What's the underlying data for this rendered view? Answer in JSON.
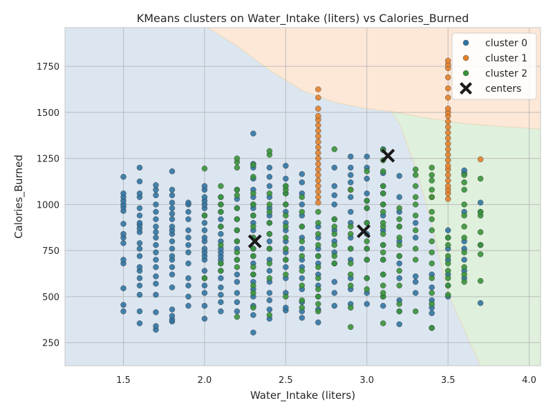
{
  "chart_data": {
    "type": "scatter",
    "title": "KMeans clusters on Water_Intake (liters) vs Calories_Burned",
    "xlabel": "Water_Intake (liters)",
    "ylabel": "Calories_Burned",
    "xlim": [
      1.14,
      4.07
    ],
    "ylim": [
      125,
      1960
    ],
    "xticks": [
      1.5,
      2.0,
      2.5,
      3.0,
      3.5,
      4.0
    ],
    "xtick_labels": [
      "1.5",
      "2.0",
      "2.5",
      "3.0",
      "3.5",
      "4.0"
    ],
    "yticks": [
      250,
      500,
      750,
      1000,
      1250,
      1500,
      1750
    ],
    "ytick_labels": [
      "250",
      "500",
      "750",
      "1000",
      "1250",
      "1500",
      "1750"
    ],
    "grid": true,
    "legend_position": "top-right",
    "colors": {
      "cluster0": "#3274a1",
      "cluster1": "#e1812c",
      "cluster2": "#3a923a",
      "region0": "#dce6f1",
      "region1": "#fde8d8",
      "region2": "#dff0dc",
      "centers": "#1a1a1a"
    },
    "decision_regions": {
      "boundary_0_1": [
        [
          2.02,
          1960
        ],
        [
          2.2,
          1860
        ],
        [
          2.4,
          1730
        ],
        [
          2.6,
          1620
        ],
        [
          2.8,
          1555
        ],
        [
          3.0,
          1520
        ],
        [
          3.15,
          1505
        ]
      ],
      "boundary_1_2": [
        [
          3.15,
          1505
        ],
        [
          3.4,
          1465
        ],
        [
          3.6,
          1440
        ],
        [
          3.8,
          1425
        ],
        [
          4.07,
          1410
        ]
      ],
      "boundary_0_2": [
        [
          3.15,
          1505
        ],
        [
          3.2,
          1440
        ],
        [
          3.3,
          1200
        ],
        [
          3.4,
          900
        ],
        [
          3.45,
          700
        ],
        [
          3.5,
          520
        ],
        [
          3.6,
          320
        ],
        [
          3.7,
          125
        ]
      ]
    },
    "series": [
      {
        "name": "cluster 0",
        "columns": [
          {
            "x": 1.5,
            "y": [
              420,
              455,
              545,
              680,
              700,
              790,
              820,
              840,
              895,
              965,
              985,
              1000,
              1020,
              1040,
              1060,
              1150
            ]
          },
          {
            "x": 1.6,
            "y": [
              355,
              420,
              510,
              560,
              600,
              640,
              660,
              720,
              760,
              790,
              850,
              870,
              890,
              900,
              940,
              980,
              1040,
              1060,
              1125,
              1200
            ]
          },
          {
            "x": 1.7,
            "y": [
              320,
              340,
              415,
              510,
              570,
              610,
              660,
              700,
              740,
              780,
              820,
              850,
              880,
              920,
              960,
              1000,
              1050,
              1080,
              1105
            ]
          },
          {
            "x": 1.8,
            "y": [
              365,
              375,
              395,
              430,
              550,
              620,
              660,
              700,
              720,
              760,
              800,
              840,
              860,
              880,
              920,
              950,
              980,
              1010,
              1050,
              1080,
              1180
            ]
          },
          {
            "x": 1.9,
            "y": [
              450,
              500,
              560,
              600,
              680,
              740,
              780,
              820,
              860,
              920,
              960,
              1000,
              1010
            ]
          },
          {
            "x": 2.0,
            "y": [
              380,
              450,
              520,
              560,
              600,
              640,
              700,
              720,
              740,
              760,
              800,
              820,
              860,
              900,
              940,
              980,
              1000,
              1020,
              1040,
              1080,
              1100
            ]
          },
          {
            "x": 2.1,
            "y": [
              420,
              470,
              510,
              550,
              600,
              640,
              680,
              700,
              720,
              740,
              760,
              800,
              840,
              880,
              920,
              960,
              1000,
              1040
            ]
          },
          {
            "x": 2.2,
            "y": [
              420,
              470,
              520,
              580,
              620,
              700,
              760,
              800,
              860,
              920,
              980,
              1030,
              1080
            ]
          },
          {
            "x": 2.3,
            "y": [
              305,
              400,
              450,
              500,
              540,
              580,
              620,
              680,
              720,
              760,
              820,
              860,
              900,
              940,
              980,
              1000,
              1040,
              1080,
              1140,
              1200,
              1220,
              1385
            ]
          },
          {
            "x": 2.4,
            "y": [
              380,
              430,
              480,
              520,
              580,
              640,
              700,
              760,
              800,
              840,
              900,
              940,
              980,
              1040,
              1100,
              1150,
              1200
            ]
          },
          {
            "x": 2.5,
            "y": [
              425,
              440,
              520,
              600,
              660,
              700,
              740,
              800,
              860,
              900,
              960,
              1000,
              1060,
              1100,
              1140,
              1210
            ]
          },
          {
            "x": 2.6,
            "y": [
              385,
              420,
              470,
              540,
              600,
              660,
              700,
              760,
              820,
              880,
              940,
              1000,
              1060,
              1120,
              1165
            ]
          },
          {
            "x": 2.7,
            "y": [
              360,
              430,
              500,
              560,
              620,
              680,
              720,
              760,
              820,
              880
            ]
          },
          {
            "x": 2.8,
            "y": [
              450,
              520,
              580,
              680,
              740,
              800,
              860,
              920,
              1000,
              1050,
              1100,
              1200
            ]
          },
          {
            "x": 2.9,
            "y": [
              460,
              540,
              600,
              700,
              760,
              820,
              900,
              960,
              1040,
              1080,
              1120,
              1160,
              1200,
              1260
            ]
          },
          {
            "x": 3.0,
            "y": [
              460,
              520,
              600,
              700,
              760,
              840,
              900,
              980,
              1020,
              1060,
              1140,
              1200,
              1260
            ]
          },
          {
            "x": 3.1,
            "y": [
              450,
              500,
              620,
              700,
              780,
              860,
              940,
              1000,
              1060,
              1100,
              1170,
              1300
            ]
          },
          {
            "x": 3.2,
            "y": [
              350,
              420,
              480,
              600,
              680,
              720,
              800,
              880,
              960,
              1040,
              1155
            ]
          },
          {
            "x": 3.3,
            "y": [
              520,
              580,
              610,
              820,
              900
            ]
          },
          {
            "x": 3.4,
            "y": [
              330,
              410,
              440,
              480,
              550,
              620
            ]
          },
          {
            "x": 3.5,
            "y": [
              500,
              560,
              620,
              700,
              760,
              820,
              860
            ]
          },
          {
            "x": 3.6,
            "y": [
              600,
              640,
              700,
              760,
              800,
              960,
              1170,
              1185
            ]
          },
          {
            "x": 3.7,
            "y": [
              465,
              780,
              960,
              1010
            ]
          }
        ]
      },
      {
        "name": "cluster 1",
        "columns": [
          {
            "x": 2.7,
            "y": [
              1010,
              1040,
              1070,
              1100,
              1130,
              1160,
              1190,
              1220,
              1250,
              1280,
              1310,
              1340,
              1370,
              1400,
              1430,
              1460,
              1480,
              1520,
              1580,
              1625
            ]
          },
          {
            "x": 2.9,
            "y": [
              1080
            ]
          },
          {
            "x": 3.4,
            "y": [
              1040
            ]
          },
          {
            "x": 3.5,
            "y": [
              1030,
              1060,
              1080,
              1100,
              1130,
              1160,
              1190,
              1210,
              1240,
              1270,
              1300,
              1330,
              1360,
              1390,
              1420,
              1450,
              1480,
              1500,
              1520,
              1580,
              1630,
              1690,
              1740,
              1760,
              1780
            ]
          },
          {
            "x": 3.7,
            "y": [
              1245
            ]
          }
        ]
      },
      {
        "name": "cluster 2",
        "columns": [
          {
            "x": 2.0,
            "y": [
              600,
              940,
              1195
            ]
          },
          {
            "x": 2.1,
            "y": [
              640,
              680,
              780,
              880,
              960,
              1000,
              1040,
              1100
            ]
          },
          {
            "x": 2.2,
            "y": [
              390,
              660,
              700,
              740,
              800,
              860,
              920,
              980,
              1050,
              1080,
              1200,
              1230,
              1250
            ]
          },
          {
            "x": 2.3,
            "y": [
              440,
              520,
              560,
              620,
              660,
              720,
              760,
              820,
              880,
              940,
              1000,
              1060,
              1150,
              1215
            ]
          },
          {
            "x": 2.4,
            "y": [
              400,
              600,
              680,
              760,
              840,
              900,
              960,
              1000,
              1060,
              1270,
              1290
            ]
          },
          {
            "x": 2.5,
            "y": [
              500,
              620,
              700,
              760,
              820,
              880,
              940,
              1000,
              1060,
              1080,
              1100
            ]
          },
          {
            "x": 2.6,
            "y": [
              440,
              480,
              560,
              640,
              720,
              800,
              880,
              960,
              1040
            ]
          },
          {
            "x": 2.7,
            "y": [
              420,
              460,
              500,
              540,
              600,
              660,
              720,
              780,
              840,
              900,
              960
            ]
          },
          {
            "x": 2.8,
            "y": [
              680,
              720,
              780,
              840,
              880,
              920,
              1300
            ]
          },
          {
            "x": 2.9,
            "y": [
              335,
              440,
              560,
              620,
              680,
              760,
              840,
              880,
              1080
            ]
          },
          {
            "x": 3.0,
            "y": [
              540,
              600,
              700,
              760,
              800,
              900,
              980,
              1020,
              1180
            ]
          },
          {
            "x": 3.1,
            "y": [
              355,
              500,
              520,
              560,
              620,
              700,
              740,
              780,
              840,
              880,
              900,
              960,
              1000,
              1060,
              1100,
              1180,
              1240,
              1295
            ]
          },
          {
            "x": 3.2,
            "y": [
              420,
              460,
              560,
              640,
              720,
              780,
              820,
              880,
              920,
              980
            ]
          },
          {
            "x": 3.3,
            "y": [
              420,
              700,
              760,
              860,
              940,
              1000,
              1040,
              1100,
              1160,
              1190
            ]
          },
          {
            "x": 3.4,
            "y": [
              330,
              460,
              520,
              600,
              680,
              740,
              800,
              860,
              920,
              960,
              1040,
              1080,
              1130,
              1160,
              1200
            ]
          },
          {
            "x": 3.5,
            "y": [
              510,
              560,
              600,
              640,
              680,
              720,
              780,
              820
            ]
          },
          {
            "x": 3.6,
            "y": [
              580,
              620,
              660,
              740,
              820,
              880,
              940,
              1000,
              1080,
              1120,
              1160
            ]
          },
          {
            "x": 3.7,
            "y": [
              585,
              730,
              780,
              850,
              940,
              960,
              1140
            ]
          }
        ]
      }
    ],
    "centers": {
      "name": "centers",
      "points": [
        [
          2.31,
          800
        ],
        [
          2.98,
          855
        ],
        [
          3.13,
          1265
        ]
      ]
    }
  }
}
